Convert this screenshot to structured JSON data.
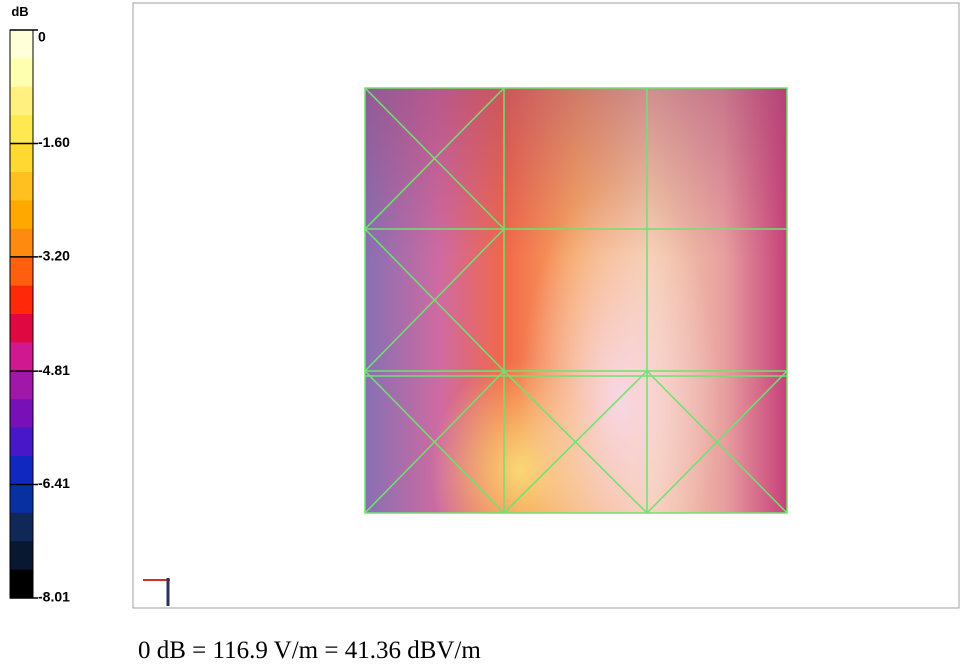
{
  "colorbar": {
    "unit": "dB",
    "ticks": [
      0,
      {
        "value": -1.6,
        "label": "-1.60"
      },
      {
        "value": -3.2,
        "label": "-3.20"
      },
      {
        "value": -4.81,
        "label": "-4.81"
      },
      {
        "value": -6.41,
        "label": "-6.41"
      },
      {
        "value": -8.01,
        "label": "-8.01"
      }
    ]
  },
  "caption": "0 dB = 116.9 V/m = 41.36 dBV/m"
}
